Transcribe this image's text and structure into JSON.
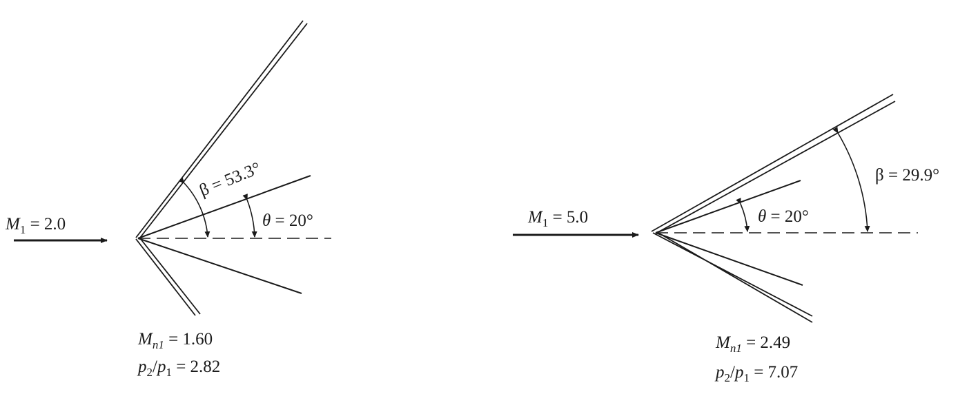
{
  "panels": [
    {
      "inflow": {
        "var": "M",
        "sub": "1",
        "rest": " = 2.0"
      },
      "wave_angle": {
        "text": "β = 53.3°"
      },
      "deflection": {
        "sym": "θ",
        "rest": " = 20°"
      },
      "normal_mach": {
        "var": "M",
        "sub": "n1",
        "rest": " = 1.60"
      },
      "pressure_ratio": {
        "p2": "p",
        "sub2": "2",
        "slash": "/",
        "p1": "p",
        "sub1": "1",
        "rest": " = 2.82"
      }
    },
    {
      "inflow": {
        "var": "M",
        "sub": "1",
        "rest": " = 5.0"
      },
      "wave_angle": {
        "text": "β = 29.9°"
      },
      "deflection": {
        "sym": "θ",
        "rest": " = 20°"
      },
      "normal_mach": {
        "var": "M",
        "sub": "n1",
        "rest": " = 2.49"
      },
      "pressure_ratio": {
        "p2": "p",
        "sub2": "2",
        "slash": "/",
        "p1": "p",
        "sub1": "1",
        "rest": " = 7.07"
      }
    }
  ]
}
